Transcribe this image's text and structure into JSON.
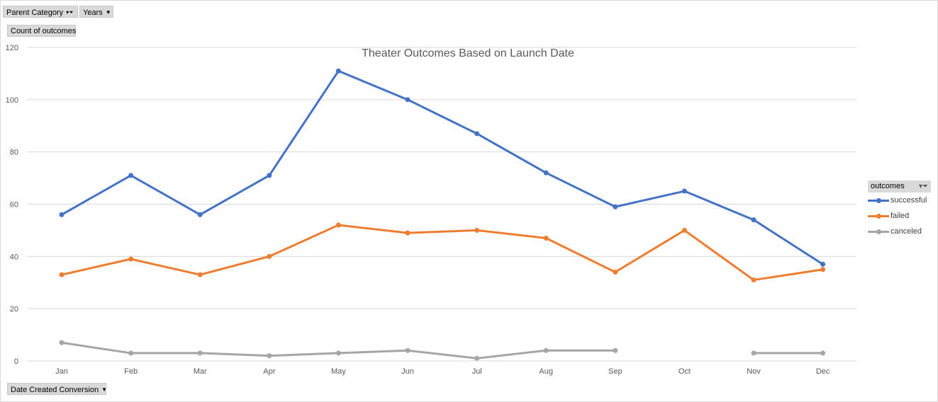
{
  "controls": {
    "parent_category": "Parent Category",
    "years": "Years",
    "value_field": "Count of outcomes",
    "axis_field": "Date Created Conversion",
    "legend_field": "outcomes"
  },
  "chart_data": {
    "type": "line",
    "title": "Theater Outcomes Based on Launch Date",
    "xlabel": "",
    "ylabel": "Count of outcomes",
    "categories": [
      "Jan",
      "Feb",
      "Mar",
      "Apr",
      "May",
      "Jun",
      "Jul",
      "Aug",
      "Sep",
      "Oct",
      "Nov",
      "Dec"
    ],
    "ylim": [
      0,
      120
    ],
    "yticks": [
      0,
      20,
      40,
      60,
      80,
      100,
      120
    ],
    "grid": true,
    "legend": "right",
    "series": [
      {
        "name": "successful",
        "color": "#4472c4",
        "values": [
          56,
          71,
          56,
          71,
          111,
          100,
          87,
          72,
          59,
          65,
          54,
          37
        ]
      },
      {
        "name": "failed",
        "color": "#ed7d31",
        "values": [
          33,
          39,
          33,
          40,
          52,
          49,
          50,
          47,
          34,
          50,
          31,
          35
        ]
      },
      {
        "name": "canceled",
        "color": "#a5a5a5",
        "values": [
          7,
          3,
          3,
          2,
          3,
          4,
          1,
          4,
          4,
          null,
          3,
          3
        ]
      }
    ]
  }
}
